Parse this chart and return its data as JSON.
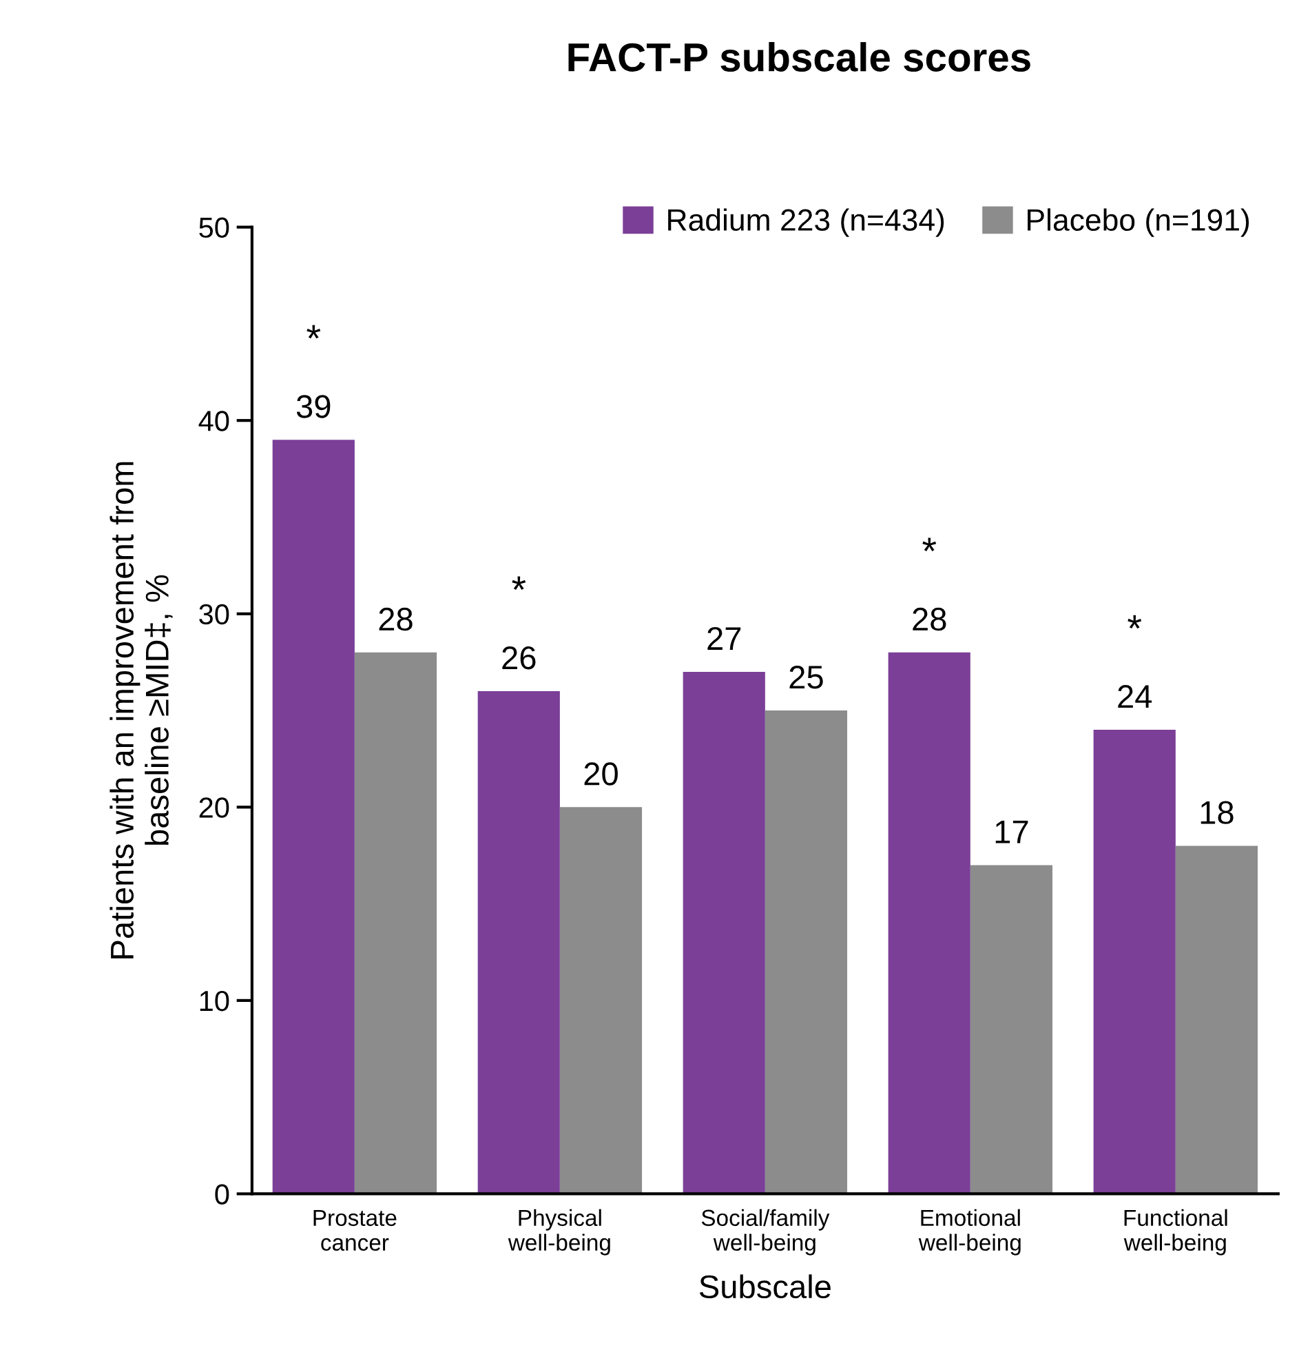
{
  "chart_data": {
    "type": "bar",
    "title": "FACT-P subscale scores",
    "xlabel": "Subscale",
    "ylabel": "Patients with an improvement from\nbaseline ≥MID‡, %",
    "categories": [
      "Prostate\ncancer",
      "Physical\nwell-being",
      "Social/family\nwell-being",
      "Emotional\nwell-being",
      "Functional\nwell-being"
    ],
    "series": [
      {
        "name": "Radium 223 (n=434)",
        "color": "#7b3f98",
        "values": [
          39,
          26,
          27,
          28,
          24
        ]
      },
      {
        "name": "Placebo (n=191)",
        "color": "#8c8c8c",
        "values": [
          28,
          20,
          25,
          17,
          18
        ]
      }
    ],
    "ylim": [
      0,
      50
    ],
    "yticks": [
      0,
      10,
      20,
      30,
      40,
      50
    ],
    "grid": false,
    "legend": "top right",
    "data_labels": true,
    "annotations": [
      {
        "text": "*",
        "x": "Prostate\ncancer",
        "y": 39
      },
      {
        "text": "*",
        "x": "Physical\nwell-being",
        "y": 26
      },
      {
        "text": "*",
        "x": "Emotional\nwell-being",
        "y": 28
      },
      {
        "text": "*",
        "x": "Functional\nwell-being",
        "y": 24
      }
    ]
  }
}
